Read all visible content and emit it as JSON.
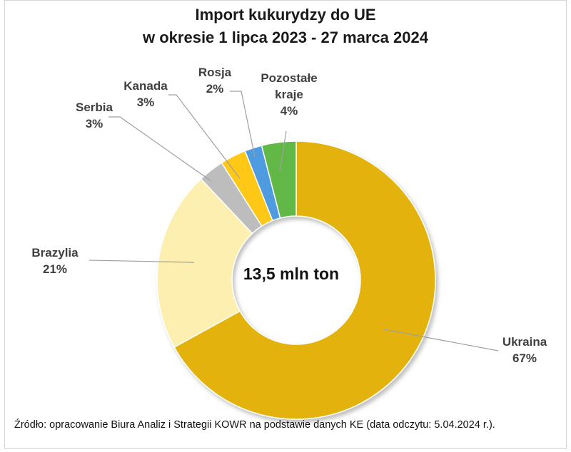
{
  "chart_data": {
    "type": "pie",
    "title": "Import kukurydzy do UE",
    "subtitle": "w okresie 1 lipca 2023 - 27 marca 2024",
    "center_label": "13,5 mln ton",
    "slices": [
      {
        "name": "Ukraina",
        "value": 67,
        "label": "67%",
        "color": "#e3b20b"
      },
      {
        "name": "Brazylia",
        "value": 21,
        "label": "21%",
        "color": "#fcefb0"
      },
      {
        "name": "Serbia",
        "value": 3,
        "label": "3%",
        "color": "#bdbdbd"
      },
      {
        "name": "Kanada",
        "value": 3,
        "label": "3%",
        "color": "#ffc715"
      },
      {
        "name": "Rosja",
        "value": 2,
        "label": "2%",
        "color": "#4f9be0"
      },
      {
        "name": "Pozostałe kraje",
        "value": 4,
        "label": "4%",
        "color": "#62b846"
      }
    ],
    "source": "Źródło: opracowanie Biura Analiz i Strategii KOWR na podstawie danych KE (data odczytu: 5.04.2024 r.)."
  },
  "labels": {
    "ukraina_name": "Ukraina",
    "ukraina_pct": "67%",
    "brazylia_name": "Brazylia",
    "brazylia_pct": "21%",
    "serbia_name": "Serbia",
    "serbia_pct": "3%",
    "kanada_name": "Kanada",
    "kanada_pct": "3%",
    "rosja_name": "Rosja",
    "rosja_pct": "2%",
    "pozostale_name1": "Pozostałe",
    "pozostale_name2": "kraje",
    "pozostale_pct": "4%"
  }
}
